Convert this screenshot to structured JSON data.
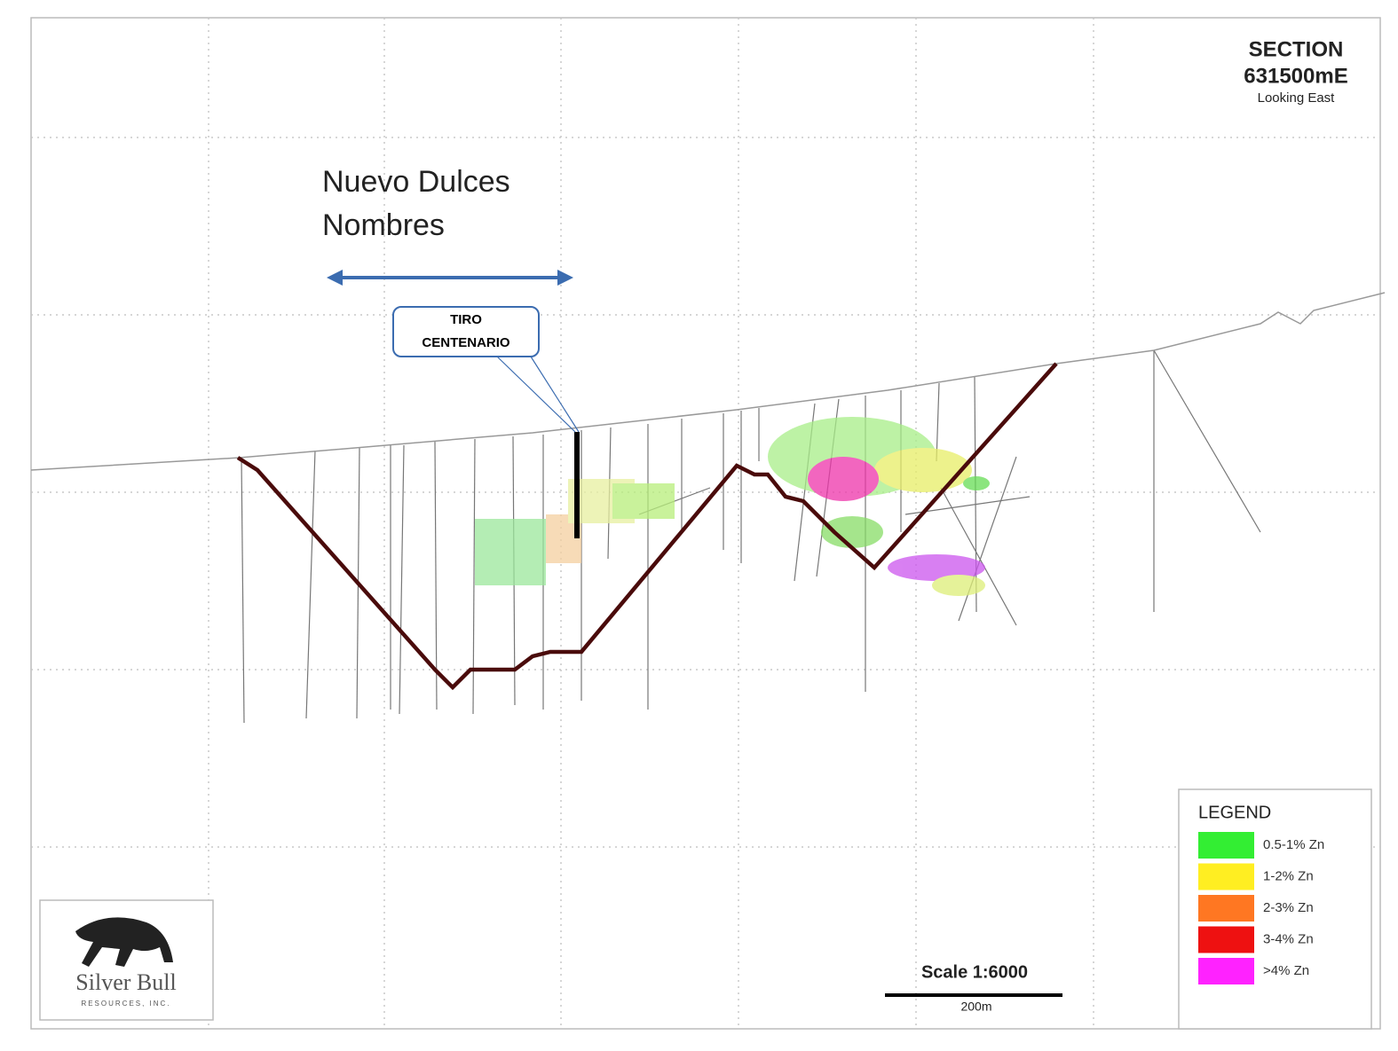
{
  "header": {
    "title": "SECTION",
    "section": "631500mE",
    "view": "Looking East"
  },
  "area": {
    "name_line1": "Nuevo Dulces",
    "name_line2": "Nombres"
  },
  "callout": {
    "line1": "TIRO",
    "line2": "CENTENARIO"
  },
  "legend": {
    "title": "LEGEND",
    "items": [
      {
        "label": "0.5-1% Zn",
        "color": "#33ee33"
      },
      {
        "label": "1-2% Zn",
        "color": "#ffee22"
      },
      {
        "label": "2-3% Zn",
        "color": "#ff7722"
      },
      {
        "label": "3-4% Zn",
        "color": "#ee1111"
      },
      {
        "label": ">4% Zn",
        "color": "#ff22ff"
      }
    ]
  },
  "scale": {
    "ratio": "Scale  1:6000",
    "bar": "200m"
  },
  "logo": {
    "name": "Silver Bull",
    "sub": "RESOURCES, INC."
  }
}
